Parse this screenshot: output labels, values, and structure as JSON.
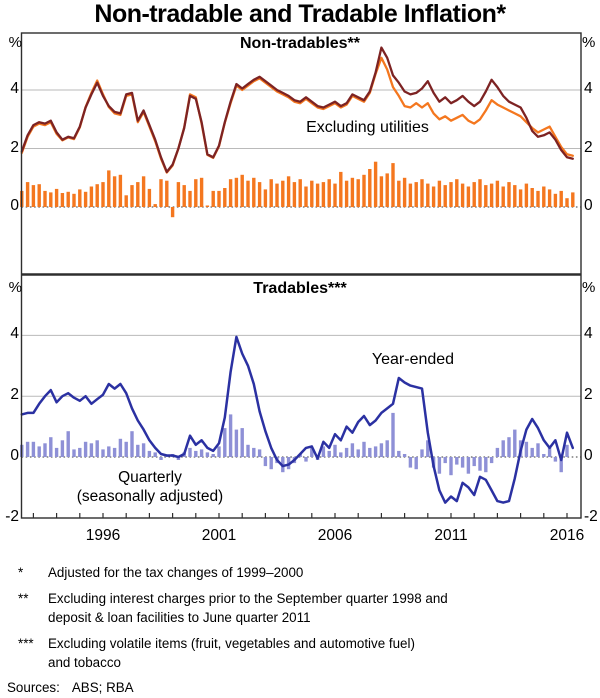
{
  "title": "Non-tradable and Tradable Inflation*",
  "axis": {
    "percent": "%"
  },
  "labels": {
    "excluding_utilities": "Excluding utilities",
    "year_ended": "Year-ended",
    "quarterly": "Quarterly",
    "seasonally_adjusted": "(seasonally adjusted)"
  },
  "colors": {
    "dark_red": "#7D2323",
    "orange": "#F4771F",
    "blue": "#2B31A2",
    "periwinkle": "#8E90D6",
    "grid": "#BABABA",
    "frame": "#2E2E2E"
  },
  "x_axis": {
    "tick_interval_years": 1,
    "first_year": 1993,
    "last_year": 2016,
    "labels": [
      {
        "year": 1996,
        "label": "1996"
      },
      {
        "year": 2001,
        "label": "2001"
      },
      {
        "year": 2006,
        "label": "2006"
      },
      {
        "year": 2011,
        "label": "2011"
      },
      {
        "year": 2016,
        "label": "2016"
      }
    ]
  },
  "chart_data": [
    {
      "type": "line+bar",
      "panel_label": "Non-tradables**",
      "x_start": 1992.5,
      "x_step": 0.25,
      "ylim": [
        -2.3,
        5.95
      ],
      "gridlines": [
        2,
        4
      ],
      "zero_line": "dotted",
      "yticks": [
        {
          "v": 4,
          "label": "4"
        },
        {
          "v": 2,
          "label": "2"
        },
        {
          "v": 0,
          "label": "0"
        }
      ],
      "series": [
        {
          "name": "Non-tradables (year-ended)",
          "type": "line",
          "color": "#7D2323",
          "values": [
            1.9,
            2.45,
            2.8,
            2.9,
            2.85,
            2.95,
            2.55,
            2.3,
            2.4,
            2.35,
            2.75,
            3.4,
            3.85,
            4.25,
            3.8,
            3.45,
            3.25,
            3.2,
            3.85,
            3.9,
            2.95,
            3.3,
            2.8,
            2.3,
            1.7,
            1.2,
            1.45,
            2.0,
            2.7,
            3.8,
            3.7,
            2.9,
            1.8,
            1.7,
            2.1,
            2.9,
            3.6,
            4.2,
            4.05,
            4.2,
            4.35,
            4.45,
            4.3,
            4.15,
            4.0,
            3.9,
            3.8,
            3.65,
            3.6,
            3.75,
            3.6,
            3.45,
            3.4,
            3.5,
            3.6,
            3.45,
            3.55,
            3.85,
            3.75,
            3.65,
            3.95,
            4.6,
            5.45,
            5.1,
            4.5,
            4.25,
            3.95,
            3.85,
            3.9,
            4.05,
            4.3,
            3.9,
            3.6,
            3.75,
            3.55,
            3.65,
            3.8,
            3.6,
            3.45,
            3.6,
            3.95,
            4.35,
            4.1,
            3.8,
            3.6,
            3.5,
            3.4,
            3.05,
            2.6,
            2.4,
            2.45,
            2.55,
            2.3,
            1.95,
            1.7,
            1.65
          ]
        },
        {
          "name": "Excluding utilities",
          "type": "line",
          "color": "#F4771F",
          "values": [
            1.85,
            2.4,
            2.75,
            2.85,
            2.8,
            2.9,
            2.5,
            2.28,
            2.38,
            2.32,
            2.72,
            3.42,
            3.9,
            4.32,
            3.85,
            3.42,
            3.2,
            3.15,
            3.8,
            3.85,
            2.9,
            3.25,
            2.75,
            2.25,
            1.65,
            1.18,
            1.42,
            2.0,
            2.72,
            3.85,
            3.75,
            2.85,
            1.78,
            1.68,
            2.08,
            2.88,
            3.55,
            4.15,
            4.0,
            4.15,
            4.3,
            4.4,
            4.25,
            4.1,
            3.95,
            3.85,
            3.75,
            3.6,
            3.55,
            3.7,
            3.55,
            3.4,
            3.35,
            3.45,
            3.55,
            3.4,
            3.5,
            3.8,
            3.7,
            3.6,
            3.9,
            4.55,
            5.1,
            4.7,
            4.1,
            3.8,
            3.45,
            3.4,
            3.55,
            3.4,
            3.55,
            3.2,
            3.0,
            3.1,
            2.95,
            3.05,
            3.15,
            2.95,
            2.85,
            3.0,
            3.3,
            3.65,
            3.5,
            3.4,
            3.3,
            3.2,
            3.1,
            2.9,
            2.7,
            2.55,
            2.65,
            2.75,
            2.4,
            2.05,
            1.8,
            1.75
          ]
        },
        {
          "name": "Quarterly",
          "type": "bar",
          "color": "#F4771F",
          "values": [
            0.55,
            0.85,
            0.75,
            0.78,
            0.55,
            0.5,
            0.62,
            0.48,
            0.52,
            0.45,
            0.6,
            0.52,
            0.7,
            0.78,
            0.85,
            1.25,
            1.05,
            1.1,
            0.4,
            0.75,
            0.85,
            1.05,
            0.62,
            0.1,
            0.95,
            0.9,
            -0.35,
            0.85,
            0.75,
            0.55,
            0.95,
            1.0,
            0.05,
            0.55,
            0.55,
            0.65,
            0.95,
            1.0,
            1.1,
            0.9,
            1.0,
            0.85,
            0.6,
            0.95,
            0.8,
            0.9,
            1.05,
            0.85,
            0.95,
            0.7,
            0.9,
            0.8,
            0.85,
            0.95,
            0.8,
            1.2,
            0.9,
            1.0,
            0.95,
            1.1,
            1.3,
            1.55,
            1.05,
            1.15,
            1.5,
            0.9,
            1.0,
            0.8,
            0.85,
            0.95,
            0.8,
            0.7,
            0.9,
            0.75,
            0.85,
            0.95,
            0.8,
            0.7,
            0.85,
            0.95,
            0.75,
            0.8,
            0.9,
            0.7,
            0.85,
            0.75,
            0.6,
            0.8,
            0.65,
            0.55,
            0.7,
            0.6,
            0.45,
            0.55,
            0.3,
            0.5
          ]
        }
      ]
    },
    {
      "type": "line+bar",
      "panel_label": "Tradables***",
      "x_start": 1992.5,
      "x_step": 0.25,
      "ylim": [
        -2,
        6
      ],
      "gridlines": [
        2,
        4
      ],
      "zero_line": "dotted",
      "yticks": [
        {
          "v": 4,
          "label": "4"
        },
        {
          "v": 2,
          "label": "2"
        },
        {
          "v": 0,
          "label": "0"
        },
        {
          "v": -2,
          "label": "-2"
        }
      ],
      "series": [
        {
          "name": "Year-ended",
          "type": "line",
          "color": "#2B31A2",
          "values": [
            1.4,
            1.45,
            1.45,
            1.75,
            2.0,
            2.2,
            1.8,
            2.0,
            2.1,
            1.95,
            1.85,
            2.0,
            1.75,
            1.9,
            2.05,
            2.4,
            2.25,
            2.4,
            2.1,
            1.6,
            1.2,
            0.9,
            0.55,
            0.3,
            0.1,
            0.05,
            0.05,
            0.0,
            0.1,
            0.7,
            0.4,
            0.55,
            0.3,
            0.2,
            0.45,
            1.3,
            2.8,
            3.95,
            3.4,
            3.0,
            2.4,
            1.5,
            0.85,
            0.3,
            -0.1,
            -0.3,
            -0.25,
            -0.1,
            0.1,
            0.3,
            0.35,
            -0.05,
            0.5,
            0.3,
            0.75,
            0.55,
            1.0,
            0.8,
            1.15,
            1.35,
            1.05,
            1.2,
            1.45,
            1.6,
            1.75,
            2.6,
            2.45,
            2.35,
            2.3,
            2.25,
            0.8,
            -0.3,
            -1.1,
            -1.5,
            -1.3,
            -1.45,
            -0.85,
            -1.0,
            -1.25,
            -0.65,
            -0.75,
            -1.1,
            -1.45,
            -1.5,
            -1.45,
            -0.7,
            0.2,
            0.9,
            1.25,
            0.95,
            0.55,
            0.3,
            0.55,
            -0.1,
            0.8,
            0.3
          ]
        },
        {
          "name": "Quarterly (seasonally adjusted)",
          "type": "bar",
          "color": "#8E90D6",
          "values": [
            0.4,
            0.5,
            0.5,
            0.35,
            0.45,
            0.65,
            0.3,
            0.55,
            0.85,
            0.25,
            0.3,
            0.5,
            0.45,
            0.55,
            0.25,
            0.35,
            0.3,
            0.6,
            0.5,
            0.85,
            0.4,
            0.45,
            0.2,
            0.15,
            -0.1,
            0.05,
            0.1,
            -0.1,
            0.15,
            0.3,
            0.2,
            0.25,
            0.15,
            0.1,
            0.35,
            0.95,
            1.4,
            0.9,
            0.95,
            0.4,
            0.3,
            0.25,
            -0.3,
            -0.4,
            -0.2,
            -0.5,
            -0.4,
            -0.2,
            0.1,
            -0.15,
            0.3,
            -0.1,
            0.35,
            0.2,
            0.4,
            0.15,
            0.3,
            0.45,
            0.25,
            0.5,
            0.3,
            0.35,
            0.45,
            0.55,
            1.45,
            0.2,
            0.1,
            -0.35,
            -0.4,
            0.25,
            0.55,
            -0.35,
            -0.55,
            -0.2,
            -0.6,
            -0.25,
            -0.35,
            -0.55,
            -0.3,
            -0.45,
            -0.5,
            -0.2,
            0.3,
            0.55,
            0.65,
            0.9,
            0.55,
            0.5,
            0.3,
            0.45,
            0.1,
            0.3,
            -0.15,
            -0.5,
            0.4
          ]
        }
      ]
    }
  ],
  "footnotes": [
    {
      "symbol": "*",
      "lines": [
        "Adjusted for the tax changes of 1999–2000"
      ]
    },
    {
      "symbol": "**",
      "lines": [
        "Excluding interest charges prior to the September quarter 1998 and",
        "deposit & loan facilities to June quarter 2011"
      ]
    },
    {
      "symbol": "***",
      "lines": [
        "Excluding volatile items (fruit, vegetables and automotive fuel)",
        "and tobacco"
      ]
    }
  ],
  "sources": {
    "label": "Sources:",
    "value": "ABS; RBA"
  }
}
